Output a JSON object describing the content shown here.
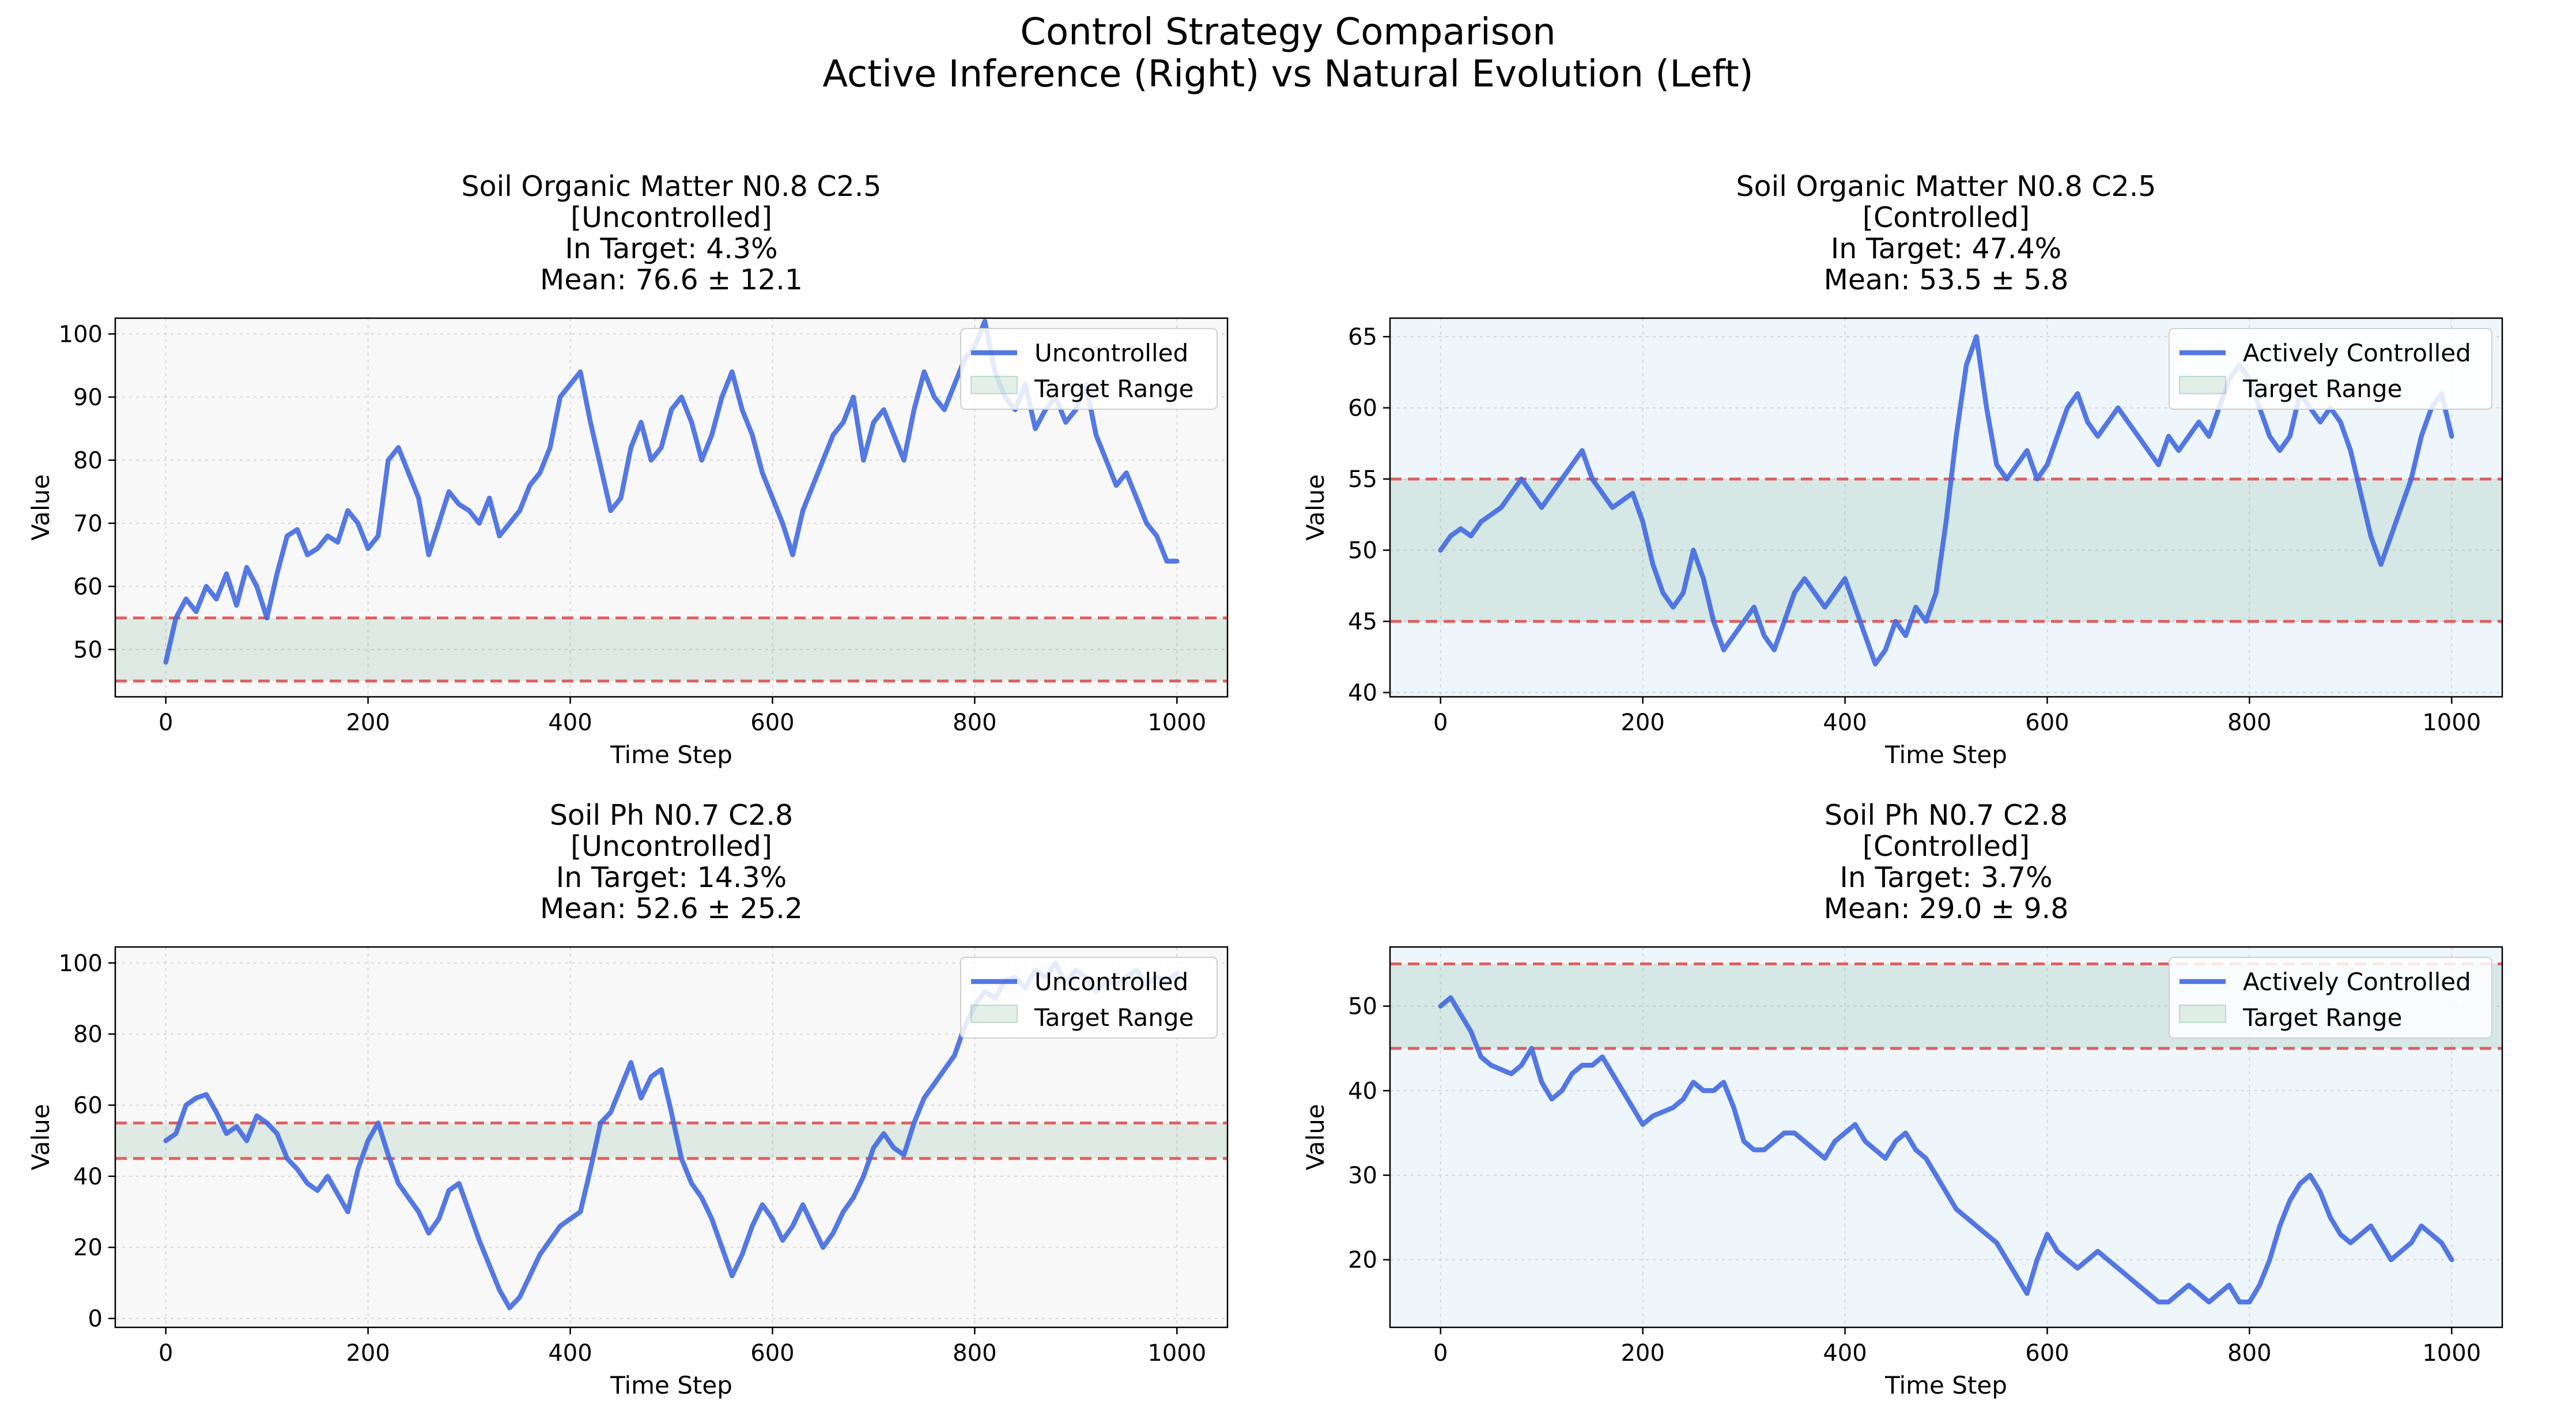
{
  "figure": {
    "title_line1": "Control Strategy Comparison",
    "title_line2": "Active Inference (Right) vs Natural Evolution (Left)"
  },
  "colors": {
    "line": "#4169e1",
    "target_fill": "#2e8b57",
    "target_line": "#e05050",
    "bg_uncontrolled": "#f8f8f8",
    "bg_controlled": "#eef6fc"
  },
  "chart_data": [
    {
      "type": "line",
      "title": [
        "Soil Organic Matter N0.8 C2.5",
        "[Uncontrolled]",
        "In Target: 4.3%",
        "Mean: 76.6 ± 12.1"
      ],
      "xlabel": "Time Step",
      "ylabel": "Value",
      "xlim": [
        -50,
        1050
      ],
      "ylim": [
        42.5,
        102.5
      ],
      "xticks": [
        0,
        200,
        400,
        600,
        800,
        1000
      ],
      "yticks": [
        50,
        60,
        70,
        80,
        90,
        100
      ],
      "target_range": [
        45,
        55
      ],
      "legend": {
        "position": "upper right",
        "entries": [
          "Uncontrolled",
          "Target Range"
        ]
      },
      "background": "uncontrolled",
      "grid": true,
      "series": [
        {
          "name": "Uncontrolled",
          "x": [
            0,
            10,
            20,
            30,
            40,
            50,
            60,
            70,
            80,
            90,
            100,
            110,
            120,
            130,
            140,
            150,
            160,
            170,
            180,
            190,
            200,
            210,
            220,
            230,
            240,
            250,
            260,
            270,
            280,
            290,
            300,
            310,
            320,
            330,
            340,
            350,
            360,
            370,
            380,
            390,
            400,
            410,
            420,
            430,
            440,
            450,
            460,
            470,
            480,
            490,
            500,
            510,
            520,
            530,
            540,
            550,
            560,
            570,
            580,
            590,
            600,
            610,
            620,
            630,
            640,
            650,
            660,
            670,
            680,
            690,
            700,
            710,
            720,
            730,
            740,
            750,
            760,
            770,
            780,
            790,
            800,
            810,
            820,
            830,
            840,
            850,
            860,
            870,
            880,
            890,
            900,
            910,
            920,
            930,
            940,
            950,
            960,
            970,
            980,
            990,
            1000
          ],
          "y": [
            48,
            55,
            58,
            56,
            60,
            58,
            62,
            57,
            63,
            60,
            55,
            62,
            68,
            69,
            65,
            66,
            68,
            67,
            72,
            70,
            66,
            68,
            80,
            82,
            78,
            74,
            65,
            70,
            75,
            73,
            72,
            70,
            74,
            68,
            70,
            72,
            76,
            78,
            82,
            90,
            92,
            94,
            86,
            79,
            72,
            74,
            82,
            86,
            80,
            82,
            88,
            90,
            86,
            80,
            84,
            90,
            94,
            88,
            84,
            78,
            74,
            70,
            65,
            72,
            76,
            80,
            84,
            86,
            90,
            80,
            86,
            88,
            84,
            80,
            88,
            94,
            90,
            88,
            92,
            96,
            98,
            102,
            94,
            90,
            88,
            92,
            85,
            88,
            90,
            86,
            88,
            92,
            84,
            80,
            76,
            78,
            74,
            70,
            68,
            64,
            64
          ]
        }
      ]
    },
    {
      "type": "line",
      "title": [
        "Soil Organic Matter N0.8 C2.5",
        "[Controlled]",
        "In Target: 47.4%",
        "Mean: 53.5 ± 5.8"
      ],
      "xlabel": "Time Step",
      "ylabel": "Value",
      "xlim": [
        -50,
        1050
      ],
      "ylim": [
        39.7,
        66.3
      ],
      "xticks": [
        0,
        200,
        400,
        600,
        800,
        1000
      ],
      "yticks": [
        40,
        45,
        50,
        55,
        60,
        65
      ],
      "target_range": [
        45,
        55
      ],
      "legend": {
        "position": "upper right",
        "entries": [
          "Actively Controlled",
          "Target Range"
        ]
      },
      "background": "controlled",
      "grid": true,
      "series": [
        {
          "name": "Actively Controlled",
          "x": [
            0,
            10,
            20,
            30,
            40,
            50,
            60,
            70,
            80,
            90,
            100,
            110,
            120,
            130,
            140,
            150,
            160,
            170,
            180,
            190,
            200,
            210,
            220,
            230,
            240,
            250,
            260,
            270,
            280,
            290,
            300,
            310,
            320,
            330,
            340,
            350,
            360,
            370,
            380,
            390,
            400,
            410,
            420,
            430,
            440,
            450,
            460,
            470,
            480,
            490,
            500,
            510,
            520,
            530,
            540,
            550,
            560,
            570,
            580,
            590,
            600,
            610,
            620,
            630,
            640,
            650,
            660,
            670,
            680,
            690,
            700,
            710,
            720,
            730,
            740,
            750,
            760,
            770,
            780,
            790,
            800,
            810,
            820,
            830,
            840,
            850,
            860,
            870,
            880,
            890,
            900,
            910,
            920,
            930,
            940,
            950,
            960,
            970,
            980,
            990,
            1000
          ],
          "y": [
            50,
            51,
            51.5,
            51,
            52,
            52.5,
            53,
            54,
            55,
            54,
            53,
            54,
            55,
            56,
            57,
            55,
            54,
            53,
            53.5,
            54,
            52,
            49,
            47,
            46,
            47,
            50,
            48,
            45,
            43,
            44,
            45,
            46,
            44,
            43,
            45,
            47,
            48,
            47,
            46,
            47,
            48,
            46,
            44,
            42,
            43,
            45,
            44,
            46,
            45,
            47,
            52,
            58,
            63,
            65,
            60,
            56,
            55,
            56,
            57,
            55,
            56,
            58,
            60,
            61,
            59,
            58,
            59,
            60,
            59,
            58,
            57,
            56,
            58,
            57,
            58,
            59,
            58,
            60,
            62,
            63,
            62,
            60,
            58,
            57,
            58,
            61,
            60,
            59,
            60,
            59,
            57,
            54,
            51,
            49,
            51,
            53,
            55,
            58,
            60,
            61,
            58
          ]
        }
      ]
    },
    {
      "type": "line",
      "title": [
        "Soil Ph N0.7 C2.8",
        "[Uncontrolled]",
        "In Target: 14.3%",
        "Mean: 52.6 ± 25.2"
      ],
      "xlabel": "Time Step",
      "ylabel": "Value",
      "xlim": [
        -50,
        1050
      ],
      "ylim": [
        -2.5,
        104.5
      ],
      "xticks": [
        0,
        200,
        400,
        600,
        800,
        1000
      ],
      "yticks": [
        0,
        20,
        40,
        60,
        80,
        100
      ],
      "target_range": [
        45,
        55
      ],
      "legend": {
        "position": "upper right",
        "entries": [
          "Uncontrolled",
          "Target Range"
        ]
      },
      "background": "uncontrolled",
      "grid": true,
      "series": [
        {
          "name": "Uncontrolled",
          "x": [
            0,
            10,
            20,
            30,
            40,
            50,
            60,
            70,
            80,
            90,
            100,
            110,
            120,
            130,
            140,
            150,
            160,
            170,
            180,
            190,
            200,
            210,
            220,
            230,
            240,
            250,
            260,
            270,
            280,
            290,
            300,
            310,
            320,
            330,
            340,
            350,
            360,
            370,
            380,
            390,
            400,
            410,
            420,
            430,
            440,
            450,
            460,
            470,
            480,
            490,
            500,
            510,
            520,
            530,
            540,
            550,
            560,
            570,
            580,
            590,
            600,
            610,
            620,
            630,
            640,
            650,
            660,
            670,
            680,
            690,
            700,
            710,
            720,
            730,
            740,
            750,
            760,
            770,
            780,
            790,
            800,
            810,
            820,
            830,
            840,
            850,
            860,
            870,
            880,
            890,
            900,
            910,
            920,
            930,
            940,
            950,
            960,
            970,
            980,
            990,
            1000
          ],
          "y": [
            50,
            52,
            60,
            62,
            63,
            58,
            52,
            54,
            50,
            57,
            55,
            52,
            45,
            42,
            38,
            36,
            40,
            35,
            30,
            42,
            50,
            55,
            46,
            38,
            34,
            30,
            24,
            28,
            36,
            38,
            30,
            22,
            15,
            8,
            3,
            6,
            12,
            18,
            22,
            26,
            28,
            30,
            42,
            55,
            58,
            65,
            72,
            62,
            68,
            70,
            58,
            45,
            38,
            34,
            28,
            20,
            12,
            18,
            26,
            32,
            28,
            22,
            26,
            32,
            26,
            20,
            24,
            30,
            34,
            40,
            48,
            52,
            48,
            46,
            55,
            62,
            66,
            70,
            74,
            82,
            88,
            92,
            90,
            95,
            96,
            93,
            98,
            96,
            100,
            94,
            98,
            96,
            92,
            95,
            94,
            96,
            98,
            94,
            96,
            95,
            97
          ]
        }
      ]
    },
    {
      "type": "line",
      "title": [
        "Soil Ph N0.7 C2.8",
        "[Controlled]",
        "In Target: 3.7%",
        "Mean: 29.0 ± 9.8"
      ],
      "xlabel": "Time Step",
      "ylabel": "Value",
      "xlim": [
        -50,
        1050
      ],
      "ylim": [
        12,
        57
      ],
      "xticks": [
        0,
        200,
        400,
        600,
        800,
        1000
      ],
      "yticks": [
        20,
        30,
        40,
        50
      ],
      "target_range": [
        45,
        55
      ],
      "legend": {
        "position": "upper right",
        "entries": [
          "Actively Controlled",
          "Target Range"
        ]
      },
      "background": "controlled",
      "grid": true,
      "series": [
        {
          "name": "Actively Controlled",
          "x": [
            0,
            10,
            20,
            30,
            40,
            50,
            60,
            70,
            80,
            90,
            100,
            110,
            120,
            130,
            140,
            150,
            160,
            170,
            180,
            190,
            200,
            210,
            220,
            230,
            240,
            250,
            260,
            270,
            280,
            290,
            300,
            310,
            320,
            330,
            340,
            350,
            360,
            370,
            380,
            390,
            400,
            410,
            420,
            430,
            440,
            450,
            460,
            470,
            480,
            490,
            500,
            510,
            520,
            530,
            540,
            550,
            560,
            570,
            580,
            590,
            600,
            610,
            620,
            630,
            640,
            650,
            660,
            670,
            680,
            690,
            700,
            710,
            720,
            730,
            740,
            750,
            760,
            770,
            780,
            790,
            800,
            810,
            820,
            830,
            840,
            850,
            860,
            870,
            880,
            890,
            900,
            910,
            920,
            930,
            940,
            950,
            960,
            970,
            980,
            990,
            1000
          ],
          "y": [
            50,
            51,
            49,
            47,
            44,
            43,
            42.5,
            42,
            43,
            45,
            41,
            39,
            40,
            42,
            43,
            43,
            44,
            42,
            40,
            38,
            36,
            37,
            37.5,
            38,
            39,
            41,
            40,
            40,
            41,
            38,
            34,
            33,
            33,
            34,
            35,
            35,
            34,
            33,
            32,
            34,
            35,
            36,
            34,
            33,
            32,
            34,
            35,
            33,
            32,
            30,
            28,
            26,
            25,
            24,
            23,
            22,
            20,
            18,
            16,
            20,
            23,
            21,
            20,
            19,
            20,
            21,
            20,
            19,
            18,
            17,
            16,
            15,
            15,
            16,
            17,
            16,
            15,
            16,
            17,
            15,
            15,
            17,
            20,
            24,
            27,
            29,
            30,
            28,
            25,
            23,
            22,
            23,
            24,
            22,
            20,
            21,
            22,
            24,
            23,
            22,
            20
          ]
        }
      ]
    }
  ]
}
